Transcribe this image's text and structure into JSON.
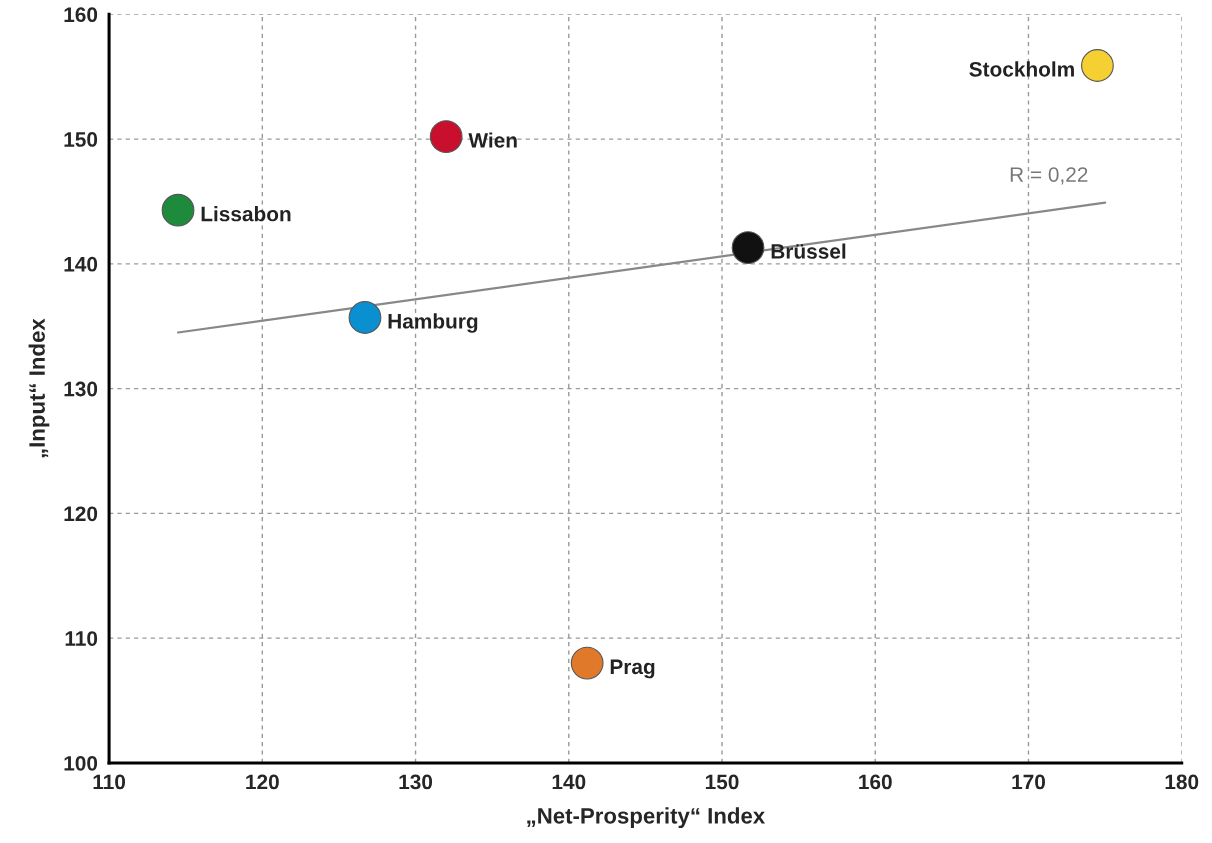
{
  "chart_data": {
    "type": "scatter",
    "xlabel": "„Net-Prosperity“ Index",
    "ylabel": "„Input“ Index",
    "xlim": [
      110,
      180
    ],
    "xticks": [
      110,
      120,
      130,
      140,
      150,
      160,
      170,
      180
    ],
    "ylim": [
      100,
      160
    ],
    "yticks": [
      100,
      110,
      120,
      130,
      140,
      150,
      160
    ],
    "grid": true,
    "legend": false,
    "marker": "circle",
    "series": [
      {
        "name": "Stockholm",
        "color": "#f5d033",
        "x": [
          174.5
        ],
        "values": [
          155.9
        ]
      },
      {
        "name": "Wien",
        "color": "#c8102e",
        "x": [
          132.0
        ],
        "values": [
          150.2
        ]
      },
      {
        "name": "Lissabon",
        "color": "#1e8a3c",
        "x": [
          114.5
        ],
        "values": [
          144.3
        ]
      },
      {
        "name": "Brüssel",
        "color": "#111111",
        "x": [
          151.7
        ],
        "values": [
          141.3
        ]
      },
      {
        "name": "Hamburg",
        "color": "#0a8fd0",
        "x": [
          126.7
        ],
        "values": [
          135.7
        ]
      },
      {
        "name": "Prag",
        "color": "#e07a2a",
        "x": [
          141.2
        ],
        "values": [
          108.0
        ]
      },
      {
        "type": "line",
        "color": "#888888",
        "x": [
          114.5,
          175.0
        ],
        "values": [
          134.5,
          144.9
        ],
        "marker": "none"
      }
    ],
    "annotations": [
      "R = 0,22"
    ]
  }
}
